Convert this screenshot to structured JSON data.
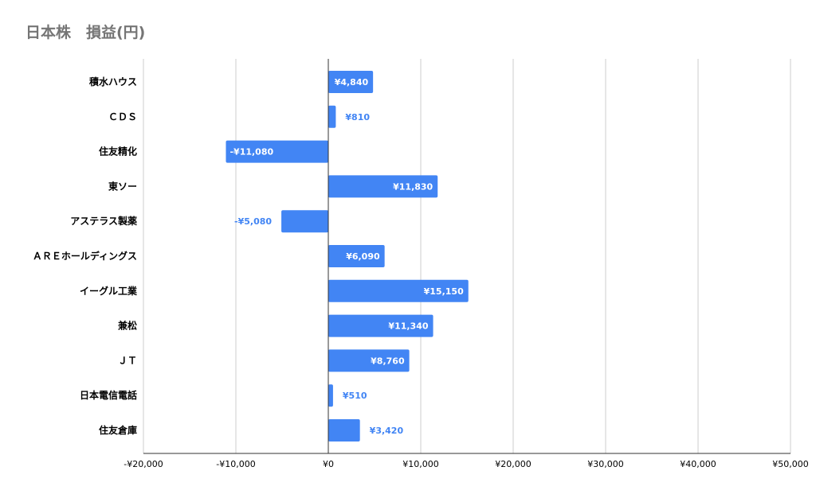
{
  "title": "日本株　損益(円)",
  "colors": {
    "bar": "#4285f4",
    "label_inside": "#ffffff",
    "label_outside": "#4285f4",
    "grid": "#cccccc",
    "axis": "#333333",
    "title": "#757575"
  },
  "chart_data": {
    "type": "bar",
    "orientation": "horizontal",
    "title": "日本株　損益(円)",
    "categories": [
      "積水ハウス",
      "ＣＤＳ",
      "住友精化",
      "東ソー",
      "アステラス製薬",
      "ＡＲＥホールディングス",
      "イーグル工業",
      "兼松",
      "ＪＴ",
      "日本電信電話",
      "住友倉庫"
    ],
    "values": [
      4840,
      810,
      -11080,
      11830,
      -5080,
      6090,
      15150,
      11340,
      8760,
      510,
      3420
    ],
    "data_labels": [
      "¥4,840",
      "¥810",
      "-¥11,080",
      "¥11,830",
      "-¥5,080",
      "¥6,090",
      "¥15,150",
      "¥11,340",
      "¥8,760",
      "¥510",
      "¥3,420"
    ],
    "xlim": [
      -20000,
      50000
    ],
    "xticks": [
      -20000,
      -10000,
      0,
      10000,
      20000,
      30000,
      40000,
      50000
    ],
    "xtick_labels": [
      "-¥20,000",
      "-¥10,000",
      "¥0",
      "¥10,000",
      "¥20,000",
      "¥30,000",
      "¥40,000",
      "¥50,000"
    ],
    "grid": "vertical",
    "legend": "none",
    "xlabel": "",
    "ylabel": ""
  }
}
